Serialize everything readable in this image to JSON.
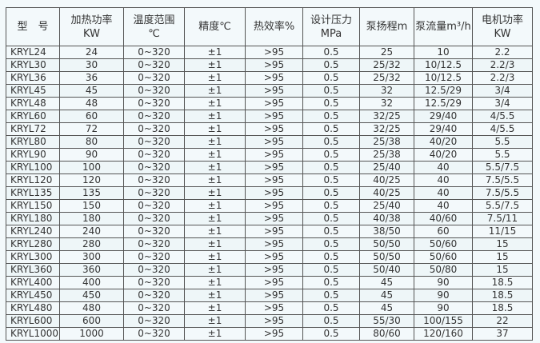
{
  "headers": [
    "型　号",
    "加热功率\nKW",
    "温度范围\n℃",
    "精度℃",
    "热效率%",
    "设计压力\nMPa",
    "泵扬程m",
    "泵流量m³/h",
    "电机功率\nKW"
  ],
  "rows": [
    [
      "KRYL24",
      "24",
      "0~320",
      "±1",
      ">95",
      "0.5",
      "25",
      "10",
      "2.2"
    ],
    [
      "KRYL30",
      "30",
      "0~320",
      "±1",
      ">95",
      "0.5",
      "25/32",
      "10/12.5",
      "2.2/3"
    ],
    [
      "KRYL36",
      "36",
      "0~320",
      "±1",
      ">95",
      "0.5",
      "25/32",
      "10/12.5",
      "2.2/3"
    ],
    [
      "KRYL45",
      "45",
      "0~320",
      "±1",
      ">95",
      "0.5",
      "32",
      "12.5/29",
      "3/4"
    ],
    [
      "KRYL48",
      "48",
      "0~320",
      "±1",
      ">95",
      "0.5",
      "32",
      "12.5/29",
      "3/4"
    ],
    [
      "KRYL60",
      "60",
      "0~320",
      "±1",
      ">95",
      "0.5",
      "32/25",
      "29/40",
      "4/5.5"
    ],
    [
      "KRYL72",
      "72",
      "0~320",
      "±1",
      ">95",
      "0.5",
      "32/25",
      "29/40",
      "4/5.5"
    ],
    [
      "KRYL80",
      "80",
      "0~320",
      "±1",
      ">95",
      "0.5",
      "25/38",
      "40/20",
      "5.5"
    ],
    [
      "KRYL90",
      "90",
      "0~320",
      "±1",
      ">95",
      "0.5",
      "25/38",
      "40/20",
      "5.5"
    ],
    [
      "KRYL100",
      "100",
      "0~320",
      "±1",
      ">95",
      "0.5",
      "25/40",
      "40",
      "5.5/7.5"
    ],
    [
      "KRYL120",
      "120",
      "0~320",
      "±1",
      ">95",
      "0.5",
      "40/25",
      "40",
      "7.5/5.5"
    ],
    [
      "KRYL135",
      "135",
      "0~320",
      "±1",
      ">95",
      "0.5",
      "40/25",
      "40",
      "7.5/5.5"
    ],
    [
      "KRYL150",
      "150",
      "0~320",
      "±1",
      ">95",
      "0.5",
      "25/40",
      "40",
      "5.5/7.5"
    ],
    [
      "KRYL180",
      "180",
      "0~320",
      "±1",
      ">95",
      "0.5",
      "40/38",
      "40/60",
      "7.5/11"
    ],
    [
      "KRYL240",
      "240",
      "0~320",
      "±1",
      ">95",
      "0.5",
      "38/50",
      "60",
      "11/15"
    ],
    [
      "KRYL280",
      "280",
      "0~320",
      "±1",
      ">95",
      "0.5",
      "50/50",
      "50/60",
      "15"
    ],
    [
      "KRYL300",
      "300",
      "0~320",
      "±1",
      ">95",
      "0.5",
      "50/50",
      "50/60",
      "15"
    ],
    [
      "KRYL360",
      "360",
      "0~320",
      "±1",
      ">95",
      "0.5",
      "50/40",
      "50/80",
      "15"
    ],
    [
      "KRYL400",
      "400",
      "0~320",
      "±1",
      ">95",
      "0.5",
      "45",
      "90",
      "18.5"
    ],
    [
      "KRYL450",
      "450",
      "0~320",
      "±1",
      ">95",
      "0.5",
      "45",
      "90",
      "18.5"
    ],
    [
      "KRYL480",
      "480",
      "0~320",
      "±1",
      ">95",
      "0.5",
      "45",
      "90",
      "18.5"
    ],
    [
      "KRYL600",
      "600",
      "0~320",
      "±1",
      ">95",
      "0.5",
      "55/30",
      "100/155",
      "22"
    ],
    [
      "KRYL1000",
      "1000",
      "0~320",
      "±1",
      ">95",
      "0.5",
      "80/60",
      "120/160",
      "37"
    ]
  ]
}
